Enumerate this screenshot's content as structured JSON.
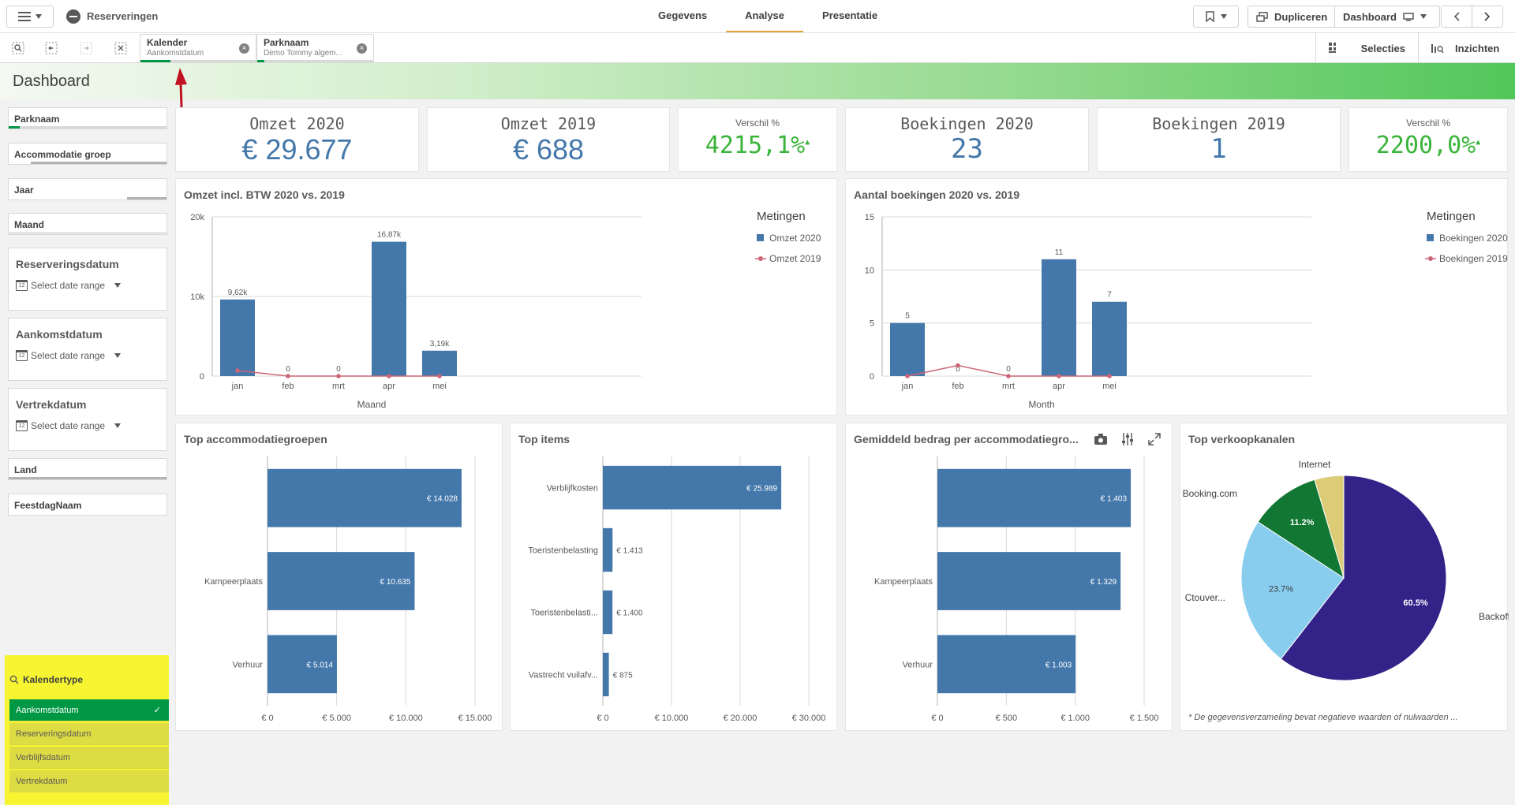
{
  "app": {
    "name": "Reserveringen"
  },
  "nav": {
    "tabs": [
      "Gegevens",
      "Analyse",
      "Presentatie"
    ],
    "active": "Analyse"
  },
  "toolbar": {
    "duplicate_label": "Dupliceren",
    "sheet_label": "Dashboard"
  },
  "selections": {
    "chips": [
      {
        "title": "Kalender",
        "value": "Aankomstdatum"
      },
      {
        "title": "Parknaam",
        "value": "Demo Tommy algem..."
      }
    ],
    "selecties_label": "Selecties",
    "inzichten_label": "Inzichten"
  },
  "sheet": {
    "title": "Dashboard"
  },
  "filters": {
    "simple": [
      "Parknaam",
      "Accommodatie groep",
      "Jaar",
      "Maand"
    ],
    "dates": [
      {
        "label": "Reserveringsdatum",
        "placeholder": "Select date range"
      },
      {
        "label": "Aankomstdatum",
        "placeholder": "Select date range"
      },
      {
        "label": "Vertrekdatum",
        "placeholder": "Select date range"
      }
    ],
    "bottom": [
      "Land",
      "FeestdagNaam"
    ],
    "kalendertype": {
      "label": "Kalendertype",
      "items": [
        "Aankomstdatum",
        "Reserveringsdatum",
        "Verblijfsdatum",
        "Vertrekdatum"
      ],
      "selected": "Aankomstdatum"
    }
  },
  "kpis": [
    {
      "title": "Omzet 2020",
      "value": "€ 29.677"
    },
    {
      "title": "Omzet 2019",
      "value": "€ 688"
    },
    {
      "title": "Verschil %",
      "value": "4215,1%"
    },
    {
      "title": "Boekingen 2020",
      "value": "23"
    },
    {
      "title": "Boekingen 2019",
      "value": "1"
    },
    {
      "title": "Verschil %",
      "value": "2200,0%"
    }
  ],
  "colors": {
    "accent": "#009845",
    "bar": "#4477aa",
    "line": "#cc6677",
    "kpi": "#4477aa",
    "kpi_up": "#3ab43a"
  },
  "chart_data": [
    {
      "type": "bar",
      "title": "Omzet incl. BTW 2020 vs. 2019",
      "categories": [
        "jan",
        "feb",
        "mrt",
        "apr",
        "mei"
      ],
      "series": [
        {
          "name": "Omzet 2020",
          "values": [
            9620,
            0,
            0,
            16870,
            3190
          ],
          "labels": [
            "9,62k",
            "0",
            "0",
            "16,87k",
            "3,19k"
          ]
        },
        {
          "name": "Omzet 2019",
          "values": [
            688,
            0,
            0,
            0,
            0
          ]
        }
      ],
      "xlabel": "Maand",
      "ylim": [
        0,
        20000
      ],
      "yticks": [
        "0",
        "10k",
        "20k"
      ],
      "legend_title": "Metingen"
    },
    {
      "type": "bar",
      "title": "Aantal boekingen 2020 vs. 2019",
      "categories": [
        "jan",
        "feb",
        "mrt",
        "apr",
        "mei"
      ],
      "series": [
        {
          "name": "Boekingen 2020",
          "values": [
            5,
            0,
            0,
            11,
            7
          ],
          "labels": [
            "5",
            "0",
            "0",
            "11",
            "7"
          ]
        },
        {
          "name": "Boekingen 2019",
          "values": [
            0,
            1,
            0,
            0,
            0
          ]
        }
      ],
      "xlabel": "Month",
      "ylim": [
        0,
        15
      ],
      "yticks": [
        "0",
        "5",
        "10",
        "15"
      ],
      "legend_title": "Metingen"
    },
    {
      "type": "bar",
      "orientation": "horizontal",
      "title": "Top accommodatiegroepen",
      "categories": [
        "",
        "Kampeerplaats",
        "Verhuur"
      ],
      "values": [
        14028,
        10635,
        5014
      ],
      "labels": [
        "€ 14.028",
        "€ 10.635",
        "€ 5.014"
      ],
      "xlim": [
        0,
        15000
      ],
      "xticks": [
        "€ 0",
        "€ 5.000",
        "€ 10.000",
        "€ 15.000"
      ]
    },
    {
      "type": "bar",
      "orientation": "horizontal",
      "title": "Top items",
      "categories": [
        "Verblijfkosten",
        "Toeristenbelasting",
        "Toeristenbelasti...",
        "Vastrecht vuilafv..."
      ],
      "values": [
        25989,
        1413,
        1400,
        875
      ],
      "labels": [
        "€ 25.989",
        "€ 1.413",
        "€ 1.400",
        "€ 875"
      ],
      "xlim": [
        0,
        30000
      ],
      "xticks": [
        "€ 0",
        "€ 10.000",
        "€ 20.000",
        "€ 30.000"
      ]
    },
    {
      "type": "bar",
      "orientation": "horizontal",
      "title": "Gemiddeld bedrag per accommodatiegro...",
      "categories": [
        "",
        "Kampeerplaats",
        "Verhuur"
      ],
      "values": [
        1403,
        1329,
        1003
      ],
      "labels": [
        "€ 1.403",
        "€ 1.329",
        "€ 1.003"
      ],
      "xlim": [
        0,
        1500
      ],
      "xticks": [
        "€ 0",
        "€ 500",
        "€ 1.000",
        "€ 1.500"
      ]
    },
    {
      "type": "pie",
      "title": "Top verkoopkanalen",
      "slices": [
        {
          "label": "Backoffice",
          "value": 60.5,
          "pct": "60.5%",
          "color": "#332288"
        },
        {
          "label": "Ctouver...",
          "value": 23.7,
          "pct": "23.7%",
          "color": "#88ccee"
        },
        {
          "label": "Booking.com",
          "value": 11.2,
          "pct": "11.2%",
          "color": "#117733"
        },
        {
          "label": "Internet",
          "value": 4.6,
          "pct": "",
          "color": "#ddcc77"
        }
      ],
      "footnote": "* De gegevensverzameling bevat negatieve waarden of nulwaarden ..."
    }
  ]
}
